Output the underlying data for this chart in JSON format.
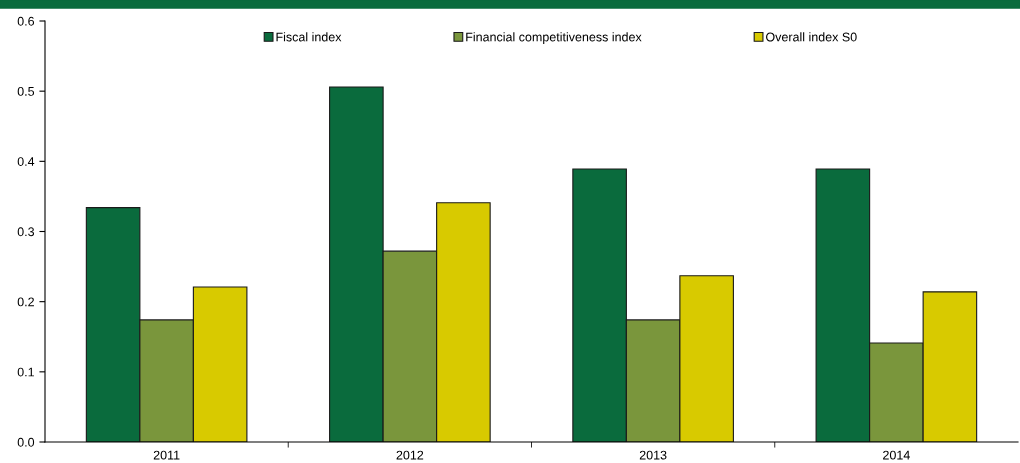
{
  "chart_data": {
    "type": "bar",
    "categories": [
      "2011",
      "2012",
      "2013",
      "2014"
    ],
    "series": [
      {
        "name": "Fiscal index",
        "color": "#0a6b3d",
        "values": [
          0.334,
          0.506,
          0.389,
          0.389
        ]
      },
      {
        "name": "Financial competitiveness index",
        "color": "#7a963c",
        "values": [
          0.174,
          0.272,
          0.174,
          0.141
        ]
      },
      {
        "name": "Overall index S0",
        "color": "#d8ca00",
        "values": [
          0.221,
          0.341,
          0.237,
          0.214
        ]
      }
    ],
    "ylim": [
      0,
      0.6
    ],
    "yticks": [
      {
        "value": 0,
        "label": "0.0"
      },
      0.1,
      0.2,
      0.3,
      0.4,
      0.5,
      0.6
    ],
    "grid": false,
    "legend": "top"
  }
}
